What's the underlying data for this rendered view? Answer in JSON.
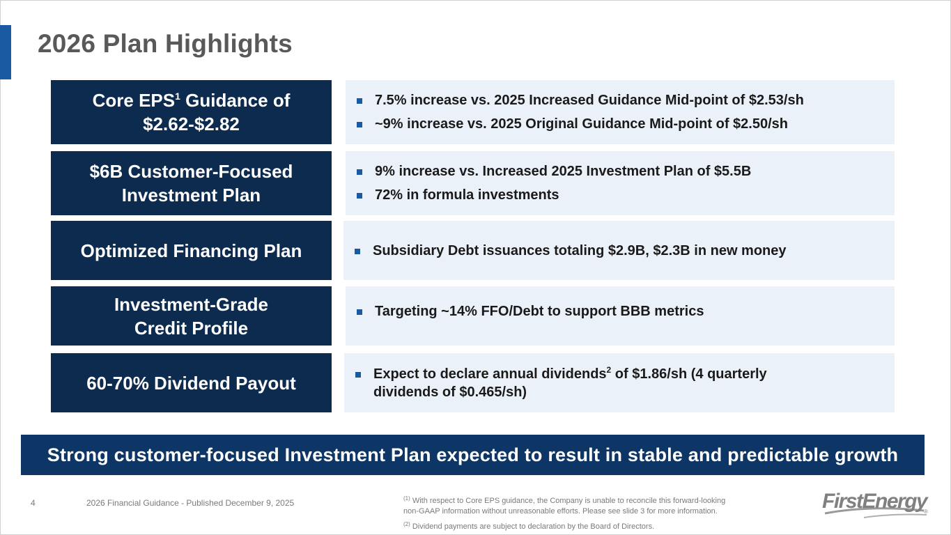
{
  "slide": {
    "title": "2026 Plan Highlights",
    "rows": [
      {
        "label_pre": "Core EPS",
        "label_sup": "1",
        "label_post": " Guidance of",
        "label_line2": "$2.62-$2.82",
        "bullets": [
          {
            "text": "7.5% increase vs. 2025 Increased Guidance Mid-point of $2.53/sh"
          },
          {
            "text": "~9% increase vs. 2025 Original Guidance Mid-point of $2.50/sh"
          }
        ]
      },
      {
        "label_line1": "$6B Customer-Focused",
        "label_line2": "Investment Plan",
        "bullets": [
          {
            "text": "9% increase vs. Increased 2025 Investment Plan of $5.5B"
          },
          {
            "text": "72% in formula investments"
          }
        ]
      },
      {
        "label_line1": "Optimized Financing Plan",
        "bullets": [
          {
            "text": "Subsidiary Debt issuances totaling $2.9B, $2.3B in new money"
          }
        ]
      },
      {
        "label_line1": "Investment-Grade",
        "label_line2": "Credit Profile",
        "bullets": [
          {
            "text": "Targeting ~14% FFO/Debt to support BBB metrics"
          }
        ]
      },
      {
        "label_line1": "60-70% Dividend Payout",
        "bullets": [
          {
            "pre": "Expect to declare annual dividends",
            "sup": "2",
            "post": " of $1.86/sh (4 quarterly",
            "line2": "dividends of $0.465/sh)"
          }
        ]
      }
    ],
    "banner": "Strong customer-focused Investment Plan expected to result in stable and predictable growth"
  },
  "footer": {
    "page_number": "4",
    "source": "2026 Financial Guidance - Published December 9, 2025",
    "footnotes": [
      {
        "mark": "(1)",
        "text": " With respect to Core EPS guidance, the Company is unable to reconcile this forward-looking",
        "line2": "non-GAAP information without unreasonable efforts. Please see slide 3 for more information."
      },
      {
        "mark": "(2)",
        "text": " Dividend payments are subject to declaration by the Board of Directors."
      }
    ],
    "logo": "FirstEnergy",
    "logo_mark": "®"
  },
  "colors": {
    "label_bg": "#0d2b4e",
    "detail_bg": "#ebf1f8",
    "banner_bg": "#0d3566",
    "accent": "#1a5aa3",
    "title": "#595959"
  }
}
